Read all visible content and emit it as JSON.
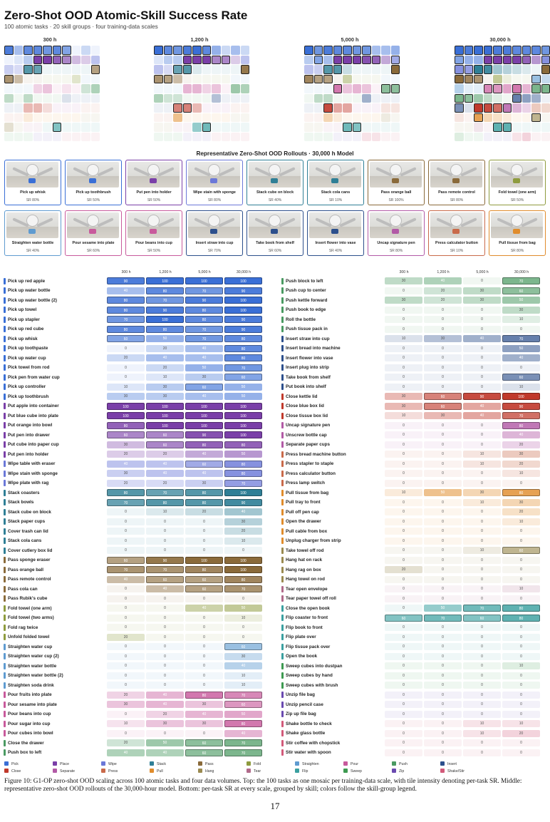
{
  "title": "Zero-Shot OOD Atomic-Skill Success Rate",
  "subtitle": "100 atomic tasks · 20 skill groups · four training-data scales",
  "rollout_title": "Representative Zero-Shot OOD Rollouts · 30,000 h Model",
  "caption": "Figure 10: G1-OP zero-shot OOD scaling across 100 atomic tasks and four data volumes. Top: the 100 tasks as one mosaic per training-data scale, with tile intensity denoting per-task SR. Middle: representative zero-shot OOD rollouts of the 30,000-hour model. Bottom: per-task SR at every scale, grouped by skill; colors follow the skill-group legend.",
  "page_number": "17",
  "groups": [
    {
      "name": "Pick",
      "color": "#3a6fd6"
    },
    {
      "name": "Place",
      "color": "#7a3fa8"
    },
    {
      "name": "Wipe",
      "color": "#6b78d8"
    },
    {
      "name": "Stack",
      "color": "#2f7f96"
    },
    {
      "name": "Pass",
      "color": "#8a6a3a"
    },
    {
      "name": "Fold",
      "color": "#8e9b3e"
    },
    {
      "name": "Straighten",
      "color": "#5f9bd0"
    },
    {
      "name": "Pour",
      "color": "#c85a9c"
    },
    {
      "name": "Push",
      "color": "#4a9a62"
    },
    {
      "name": "Insert",
      "color": "#2c4f8c"
    },
    {
      "name": "Close",
      "color": "#c0392b"
    },
    {
      "name": "Separate",
      "color": "#b25aa6"
    },
    {
      "name": "Press",
      "color": "#c96a4a"
    },
    {
      "name": "Pull",
      "color": "#e08c2c"
    },
    {
      "name": "Hang",
      "color": "#9a8a50"
    },
    {
      "name": "Tear",
      "color": "#b06a8a"
    },
    {
      "name": "Flip",
      "color": "#3aa0a0"
    },
    {
      "name": "Sweep",
      "color": "#3d9a50"
    },
    {
      "name": "Zip",
      "color": "#6a4ab0"
    },
    {
      "name": "Shake/Stir",
      "color": "#d25a7a"
    }
  ],
  "rollouts": [
    {
      "label": "Pick up whisk",
      "sr": "SR 80%",
      "group": 0
    },
    {
      "label": "Pick up toothbrush",
      "sr": "SR 50%",
      "group": 0
    },
    {
      "label": "Put pen into holder",
      "sr": "SR 50%",
      "group": 1
    },
    {
      "label": "Wipe stain with sponge",
      "sr": "SR 80%",
      "group": 2
    },
    {
      "label": "Stack cube on block",
      "sr": "SR 40%",
      "group": 3
    },
    {
      "label": "Stack cola cans",
      "sr": "SR 10%",
      "group": 3
    },
    {
      "label": "Pass orange ball",
      "sr": "SR 100%",
      "group": 4
    },
    {
      "label": "Pass remote control",
      "sr": "SR 80%",
      "group": 4
    },
    {
      "label": "Fold towel (one arm)",
      "sr": "SR 50%",
      "group": 5
    },
    {
      "label": "Straighten water bottle",
      "sr": "SR 40%",
      "group": 6
    },
    {
      "label": "Pour sesame into plate",
      "sr": "SR 60%",
      "group": 7
    },
    {
      "label": "Pour beans into cup",
      "sr": "SR 50%",
      "group": 7
    },
    {
      "label": "Insert straw into cup",
      "sr": "SR 70%",
      "group": 9
    },
    {
      "label": "Take book from shelf",
      "sr": "SR 60%",
      "group": 9
    },
    {
      "label": "Insert flower into vase",
      "sr": "SR 40%",
      "group": 9
    },
    {
      "label": "Uncap signature pen",
      "sr": "SR 80%",
      "group": 11
    },
    {
      "label": "Press calculator button",
      "sr": "SR 10%",
      "group": 12
    },
    {
      "label": "Pull tissue from bag",
      "sr": "SR 80%",
      "group": 13
    }
  ],
  "chart_data": {
    "type": "heatmap",
    "scales": [
      "300 h",
      "1,200 h",
      "5,000 h",
      "30,000 h"
    ],
    "tasks": [
      {
        "name": "Pick up red apple",
        "group": 0,
        "sr": [
          90,
          100,
          100,
          100
        ]
      },
      {
        "name": "Pick up water bottle",
        "group": 0,
        "sr": [
          40,
          80,
          70,
          90
        ]
      },
      {
        "name": "Pick up water bottle (2)",
        "group": 0,
        "sr": [
          80,
          70,
          90,
          100
        ]
      },
      {
        "name": "Pick up towel",
        "group": 0,
        "sr": [
          80,
          90,
          80,
          100
        ]
      },
      {
        "name": "Pick up stapler",
        "group": 0,
        "sr": [
          70,
          100,
          80,
          90
        ]
      },
      {
        "name": "Pick up red cube",
        "group": 0,
        "sr": [
          80,
          80,
          70,
          90
        ]
      },
      {
        "name": "Pick up whisk",
        "group": 0,
        "sr": [
          60,
          50,
          70,
          80
        ]
      },
      {
        "name": "Pick up toothpaste",
        "group": 0,
        "sr": [
          0,
          20,
          40,
          80
        ]
      },
      {
        "name": "Pick up water cup",
        "group": 0,
        "sr": [
          20,
          40,
          40,
          80
        ]
      },
      {
        "name": "Pick towel from rod",
        "group": 0,
        "sr": [
          0,
          20,
          50,
          70
        ]
      },
      {
        "name": "Pick pen from water cup",
        "group": 0,
        "sr": [
          0,
          10,
          30,
          60
        ]
      },
      {
        "name": "Pick up controller",
        "group": 0,
        "sr": [
          10,
          30,
          60,
          50
        ]
      },
      {
        "name": "Pick up toothbrush",
        "group": 0,
        "sr": [
          30,
          30,
          40,
          50
        ]
      },
      {
        "name": "Put apple into container",
        "group": 1,
        "sr": [
          100,
          100,
          100,
          100
        ]
      },
      {
        "name": "Put blue cube into plate",
        "group": 1,
        "sr": [
          100,
          100,
          100,
          100
        ]
      },
      {
        "name": "Put orange into bowl",
        "group": 1,
        "sr": [
          80,
          100,
          100,
          100
        ]
      },
      {
        "name": "Put pen into drawer",
        "group": 1,
        "sr": [
          60,
          60,
          90,
          100
        ]
      },
      {
        "name": "Put cube into paper cup",
        "group": 1,
        "sr": [
          30,
          60,
          80,
          80
        ]
      },
      {
        "name": "Put pen into holder",
        "group": 1,
        "sr": [
          20,
          20,
          40,
          50
        ]
      },
      {
        "name": "Wipe table with eraser",
        "group": 2,
        "sr": [
          40,
          40,
          60,
          80
        ]
      },
      {
        "name": "Wipe stain with sponge",
        "group": 2,
        "sr": [
          30,
          40,
          40,
          80
        ]
      },
      {
        "name": "Wipe plate with rag",
        "group": 2,
        "sr": [
          20,
          20,
          30,
          70
        ]
      },
      {
        "name": "Stack coasters",
        "group": 3,
        "sr": [
          80,
          70,
          80,
          100
        ]
      },
      {
        "name": "Stack bowls",
        "group": 3,
        "sr": [
          70,
          80,
          80,
          90
        ]
      },
      {
        "name": "Stack cube on block",
        "group": 3,
        "sr": [
          0,
          10,
          20,
          40
        ]
      },
      {
        "name": "Stack paper cups",
        "group": 3,
        "sr": [
          0,
          0,
          0,
          30
        ]
      },
      {
        "name": "Cover trash can lid",
        "group": 3,
        "sr": [
          0,
          0,
          0,
          20
        ]
      },
      {
        "name": "Stack cola cans",
        "group": 3,
        "sr": [
          0,
          0,
          0,
          10
        ]
      },
      {
        "name": "Cover cutlery box lid",
        "group": 3,
        "sr": [
          0,
          0,
          0,
          0
        ]
      },
      {
        "name": "Pass sponge eraser",
        "group": 4,
        "sr": [
          60,
          90,
          100,
          100
        ]
      },
      {
        "name": "Pass orange ball",
        "group": 4,
        "sr": [
          70,
          70,
          80,
          100
        ]
      },
      {
        "name": "Pass remote control",
        "group": 4,
        "sr": [
          40,
          60,
          60,
          80
        ]
      },
      {
        "name": "Pass cola can",
        "group": 4,
        "sr": [
          0,
          40,
          60,
          70
        ]
      },
      {
        "name": "Pass Rubik's cube",
        "group": 4,
        "sr": [
          0,
          0,
          0,
          0
        ]
      },
      {
        "name": "Fold towel (one arm)",
        "group": 5,
        "sr": [
          0,
          0,
          40,
          50
        ]
      },
      {
        "name": "Fold towel (two arms)",
        "group": 5,
        "sr": [
          0,
          0,
          0,
          10
        ]
      },
      {
        "name": "Fold rag twice",
        "group": 5,
        "sr": [
          0,
          0,
          0,
          0
        ]
      },
      {
        "name": "Unfold folded towel",
        "group": 5,
        "sr": [
          20,
          0,
          0,
          0
        ]
      },
      {
        "name": "Straighten water cup",
        "group": 6,
        "sr": [
          0,
          0,
          0,
          60
        ]
      },
      {
        "name": "Straighten water cup (2)",
        "group": 6,
        "sr": [
          0,
          0,
          0,
          30
        ]
      },
      {
        "name": "Straighten water bottle",
        "group": 6,
        "sr": [
          0,
          0,
          0,
          40
        ]
      },
      {
        "name": "Straighten water bottle (2)",
        "group": 6,
        "sr": [
          0,
          0,
          0,
          10
        ]
      },
      {
        "name": "Straighten soda drink",
        "group": 6,
        "sr": [
          0,
          0,
          0,
          10
        ]
      },
      {
        "name": "Pour fruits into plate",
        "group": 7,
        "sr": [
          20,
          40,
          80,
          70
        ]
      },
      {
        "name": "Pour sesame into plate",
        "group": 7,
        "sr": [
          30,
          40,
          30,
          60
        ]
      },
      {
        "name": "Pour beans into cup",
        "group": 7,
        "sr": [
          0,
          20,
          40,
          50
        ]
      },
      {
        "name": "Pour sugar into cup",
        "group": 7,
        "sr": [
          10,
          30,
          30,
          80
        ]
      },
      {
        "name": "Pour cubes into bowl",
        "group": 7,
        "sr": [
          0,
          0,
          0,
          40
        ]
      },
      {
        "name": "Close the drawer",
        "group": 8,
        "sr": [
          20,
          50,
          60,
          70
        ]
      },
      {
        "name": "Push box to left",
        "group": 8,
        "sr": [
          40,
          40,
          60,
          70
        ]
      },
      {
        "name": "Push block to left",
        "group": 8,
        "sr": [
          30,
          40,
          0,
          70
        ]
      },
      {
        "name": "Push cup to center",
        "group": 8,
        "sr": [
          0,
          20,
          30,
          60
        ]
      },
      {
        "name": "Push kettle forward",
        "group": 8,
        "sr": [
          30,
          20,
          30,
          50
        ]
      },
      {
        "name": "Push book to edge",
        "group": 8,
        "sr": [
          0,
          0,
          0,
          30
        ]
      },
      {
        "name": "Roll the bottle",
        "group": 8,
        "sr": [
          0,
          0,
          0,
          10
        ]
      },
      {
        "name": "Push tissue pack in",
        "group": 8,
        "sr": [
          0,
          0,
          0,
          0
        ]
      },
      {
        "name": "Insert straw into cup",
        "group": 9,
        "sr": [
          10,
          30,
          40,
          70
        ]
      },
      {
        "name": "Insert bread into machine",
        "group": 9,
        "sr": [
          0,
          0,
          0,
          50
        ]
      },
      {
        "name": "Insert flower into vase",
        "group": 9,
        "sr": [
          0,
          0,
          0,
          40
        ]
      },
      {
        "name": "Insert plug into strip",
        "group": 9,
        "sr": [
          0,
          0,
          0,
          0
        ]
      },
      {
        "name": "Take book from shelf",
        "group": 9,
        "sr": [
          0,
          0,
          0,
          60
        ]
      },
      {
        "name": "Put book into shelf",
        "group": 9,
        "sr": [
          0,
          0,
          0,
          10
        ]
      },
      {
        "name": "Close kettle lid",
        "group": 10,
        "sr": [
          30,
          60,
          90,
          100
        ]
      },
      {
        "name": "Close blue box lid",
        "group": 10,
        "sr": [
          30,
          60,
          40,
          90
        ]
      },
      {
        "name": "Close tissue box lid",
        "group": 10,
        "sr": [
          10,
          30,
          40,
          70
        ]
      },
      {
        "name": "Uncap signature pen",
        "group": 11,
        "sr": [
          0,
          0,
          0,
          80
        ]
      },
      {
        "name": "Unscrew bottle cap",
        "group": 11,
        "sr": [
          0,
          0,
          0,
          40
        ]
      },
      {
        "name": "Separate paper cups",
        "group": 11,
        "sr": [
          0,
          0,
          0,
          20
        ]
      },
      {
        "name": "Press bread machine button",
        "group": 12,
        "sr": [
          0,
          0,
          10,
          30
        ]
      },
      {
        "name": "Press stapler to staple",
        "group": 12,
        "sr": [
          0,
          0,
          10,
          20
        ]
      },
      {
        "name": "Press calculator button",
        "group": 12,
        "sr": [
          0,
          0,
          0,
          10
        ]
      },
      {
        "name": "Press lamp switch",
        "group": 12,
        "sr": [
          0,
          0,
          0,
          0
        ]
      },
      {
        "name": "Pull tissue from bag",
        "group": 13,
        "sr": [
          10,
          50,
          30,
          80
        ]
      },
      {
        "name": "Pull tray to front",
        "group": 13,
        "sr": [
          0,
          0,
          10,
          30
        ]
      },
      {
        "name": "Pull off pen cap",
        "group": 13,
        "sr": [
          0,
          0,
          0,
          20
        ]
      },
      {
        "name": "Open the drawer",
        "group": 13,
        "sr": [
          0,
          0,
          0,
          10
        ]
      },
      {
        "name": "Pull cable from box",
        "group": 13,
        "sr": [
          0,
          0,
          0,
          0
        ]
      },
      {
        "name": "Unplug charger from strip",
        "group": 13,
        "sr": [
          0,
          0,
          0,
          0
        ]
      },
      {
        "name": "Take towel off rod",
        "group": 14,
        "sr": [
          0,
          0,
          10,
          60
        ]
      },
      {
        "name": "Hang hat on rack",
        "group": 14,
        "sr": [
          0,
          0,
          0,
          0
        ]
      },
      {
        "name": "Hang rag on box",
        "group": 14,
        "sr": [
          20,
          0,
          0,
          0
        ]
      },
      {
        "name": "Hang towel on rod",
        "group": 14,
        "sr": [
          0,
          0,
          0,
          0
        ]
      },
      {
        "name": "Tear open envelope",
        "group": 15,
        "sr": [
          0,
          0,
          0,
          10
        ]
      },
      {
        "name": "Tear paper towel off roll",
        "group": 15,
        "sr": [
          0,
          0,
          0,
          0
        ]
      },
      {
        "name": "Close the open book",
        "group": 16,
        "sr": [
          0,
          50,
          70,
          80
        ]
      },
      {
        "name": "Flip coaster to front",
        "group": 16,
        "sr": [
          60,
          70,
          60,
          80
        ]
      },
      {
        "name": "Flip book to front",
        "group": 16,
        "sr": [
          0,
          0,
          0,
          0
        ]
      },
      {
        "name": "Flip plate over",
        "group": 16,
        "sr": [
          0,
          0,
          0,
          0
        ]
      },
      {
        "name": "Flip tissue pack over",
        "group": 16,
        "sr": [
          0,
          0,
          0,
          0
        ]
      },
      {
        "name": "Open the book",
        "group": 16,
        "sr": [
          0,
          0,
          0,
          0
        ]
      },
      {
        "name": "Sweep cubes into dustpan",
        "group": 17,
        "sr": [
          0,
          0,
          0,
          10
        ]
      },
      {
        "name": "Sweep cubes by hand",
        "group": 17,
        "sr": [
          0,
          0,
          0,
          0
        ]
      },
      {
        "name": "Sweep cubes with brush",
        "group": 17,
        "sr": [
          0,
          0,
          0,
          0
        ]
      },
      {
        "name": "Unzip file bag",
        "group": 18,
        "sr": [
          0,
          0,
          0,
          0
        ]
      },
      {
        "name": "Unzip pencil case",
        "group": 18,
        "sr": [
          0,
          0,
          0,
          0
        ]
      },
      {
        "name": "Zip up file bag",
        "group": 18,
        "sr": [
          0,
          0,
          0,
          0
        ]
      },
      {
        "name": "Shake bottle to check",
        "group": 19,
        "sr": [
          0,
          0,
          10,
          10
        ]
      },
      {
        "name": "Shake glass bottle",
        "group": 19,
        "sr": [
          0,
          0,
          10,
          20
        ]
      },
      {
        "name": "Stir coffee with chopstick",
        "group": 19,
        "sr": [
          0,
          0,
          0,
          0
        ]
      },
      {
        "name": "Stir water with spoon",
        "group": 19,
        "sr": [
          0,
          0,
          0,
          0
        ]
      }
    ]
  }
}
